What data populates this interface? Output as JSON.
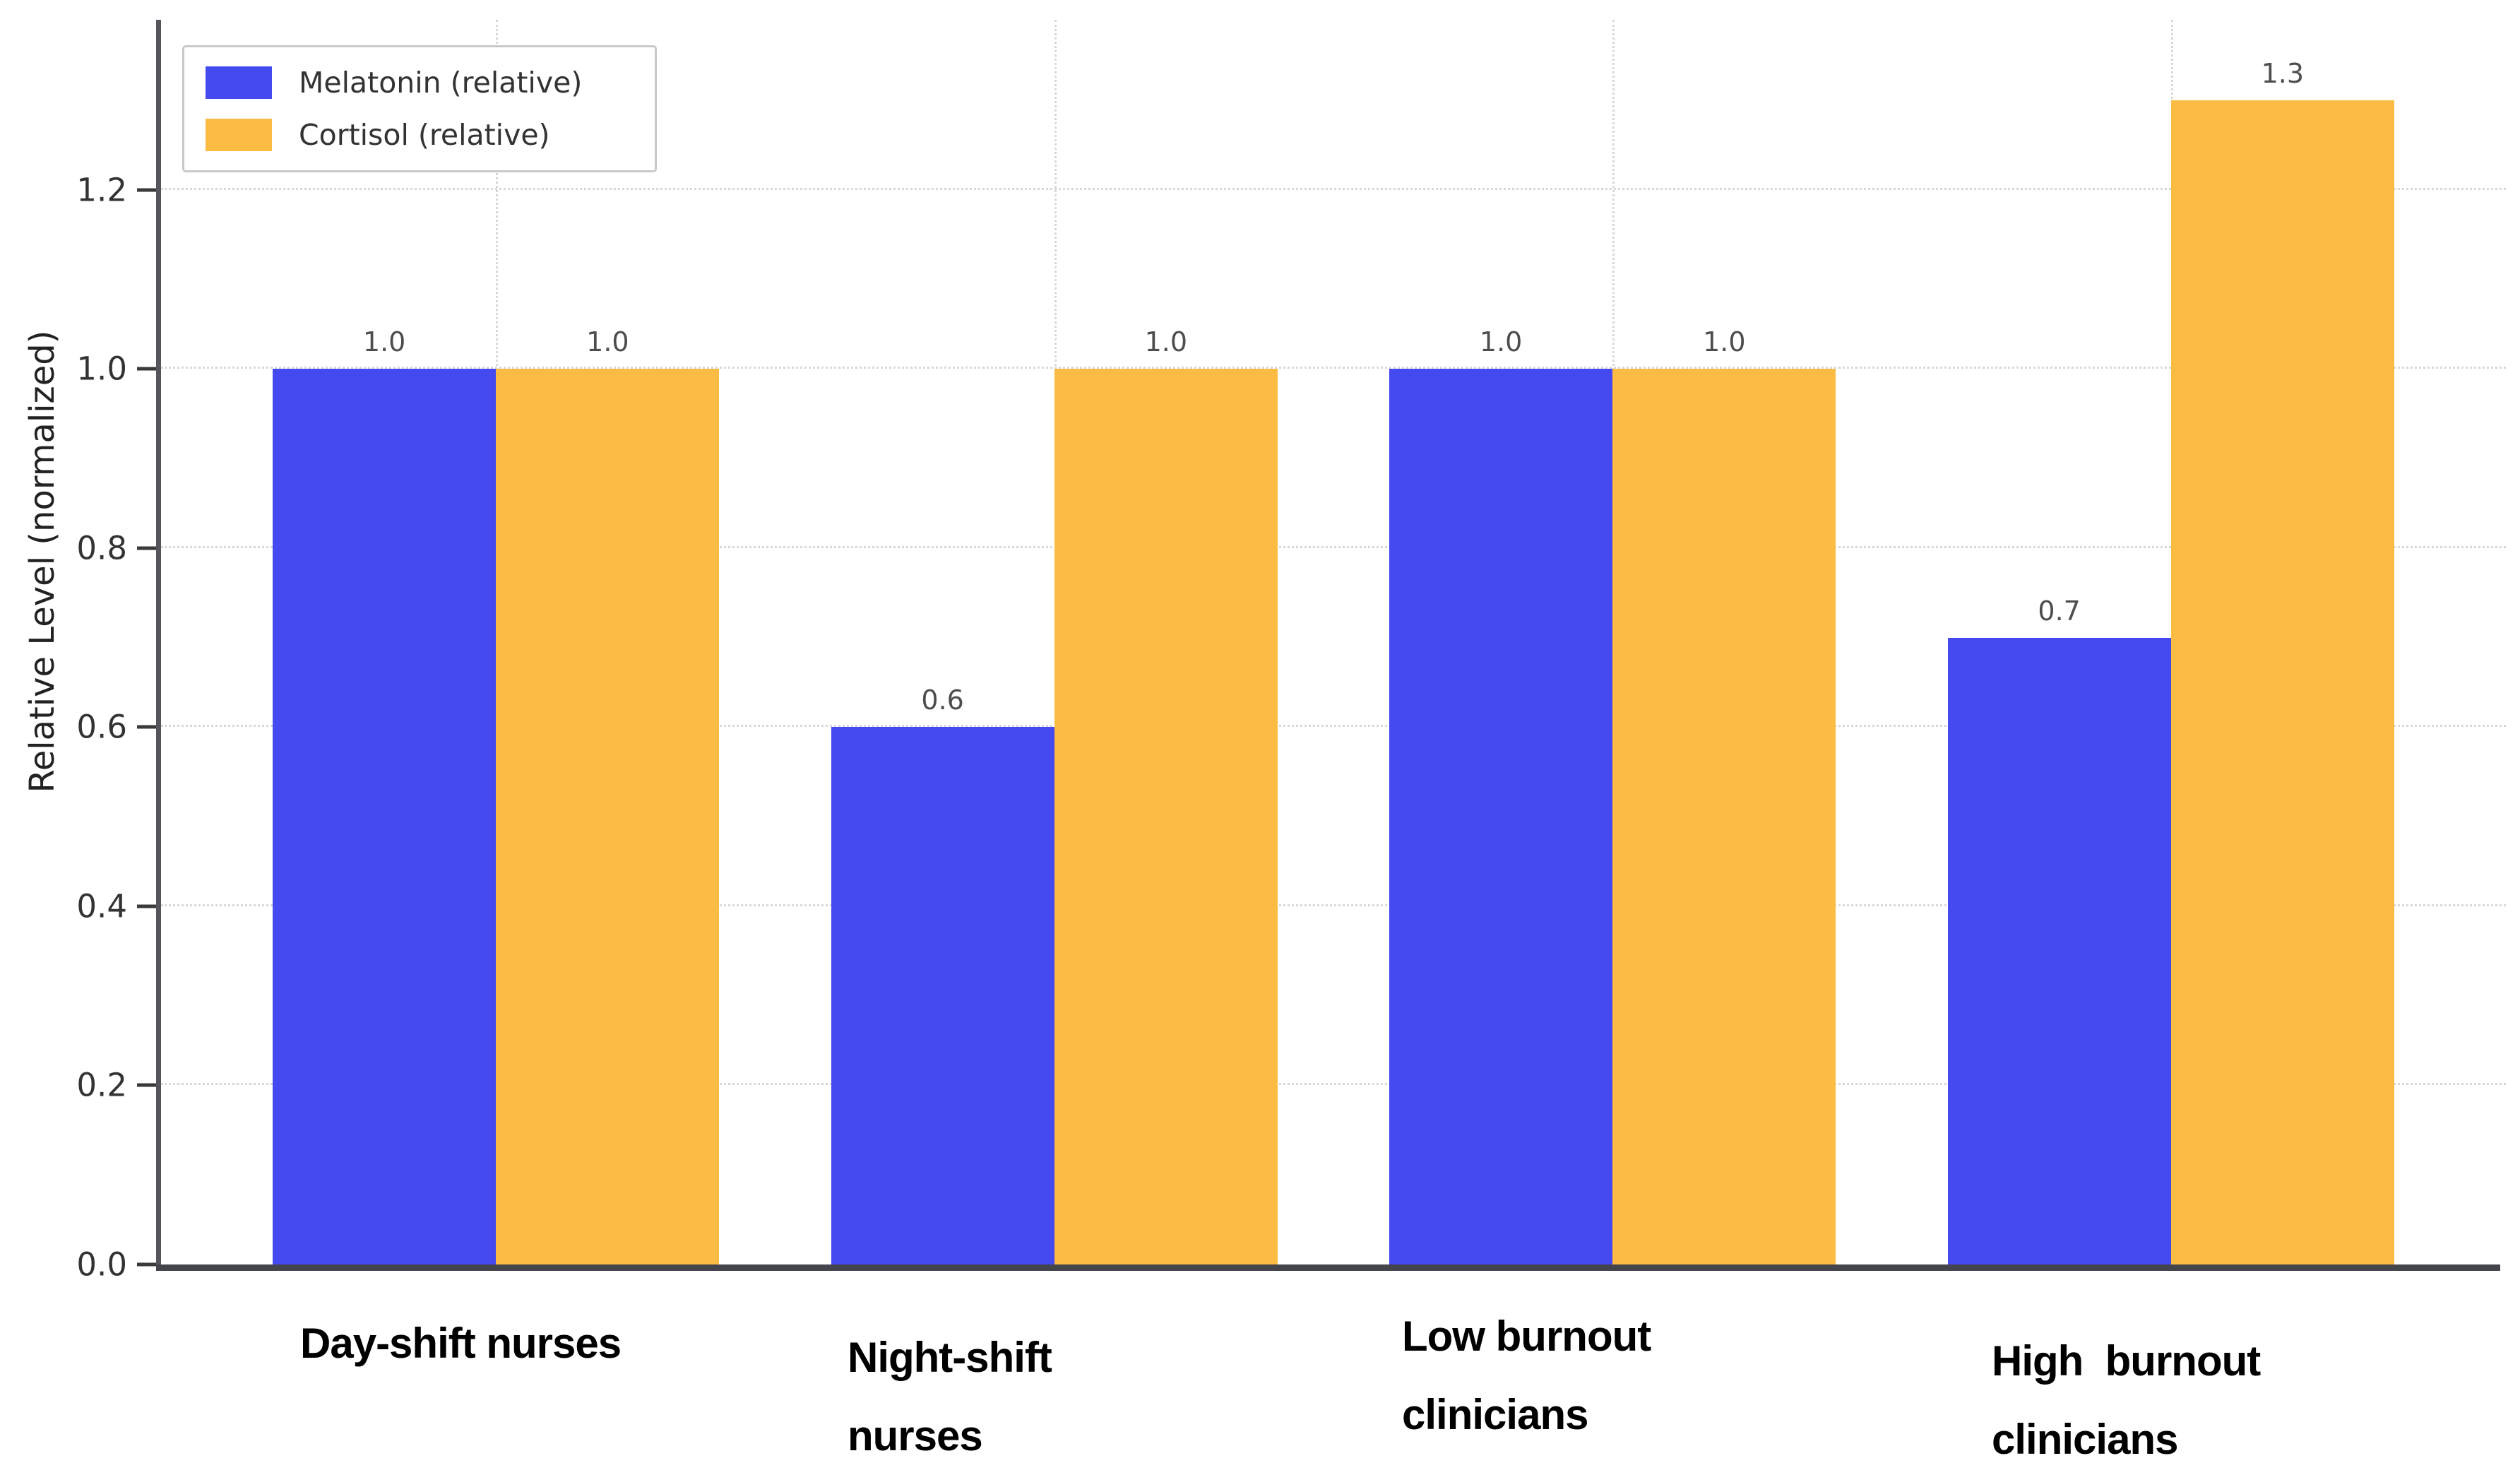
{
  "chart_data": {
    "type": "bar",
    "categories": [
      "Day-shift nurses",
      "Night-shift\nnurses",
      "Low burnout\nclinicians",
      "High  burnout\nclinicians"
    ],
    "series": [
      {
        "name": "Melatonin (relative)",
        "color": "#4549f0",
        "values": [
          1.0,
          0.6,
          1.0,
          0.7
        ]
      },
      {
        "name": "Cortisol (relative)",
        "color": "#fcbc43",
        "values": [
          1.0,
          1.0,
          1.0,
          1.3
        ]
      }
    ],
    "title": "",
    "xlabel": "",
    "ylabel": "Relative Level (normalized)",
    "yticks": [
      "0.0",
      "0.2",
      "0.4",
      "0.6",
      "0.8",
      "1.0",
      "1.2"
    ],
    "ylim": [
      0,
      1.39
    ],
    "grid": "dotted horizontal and vertical gridlines",
    "legend_position": "upper-left",
    "bar_value_labels": [
      [
        "1.0",
        "0.6",
        "1.0",
        "0.7"
      ],
      [
        "1.0",
        "1.0",
        "1.0",
        "1.3"
      ]
    ]
  }
}
